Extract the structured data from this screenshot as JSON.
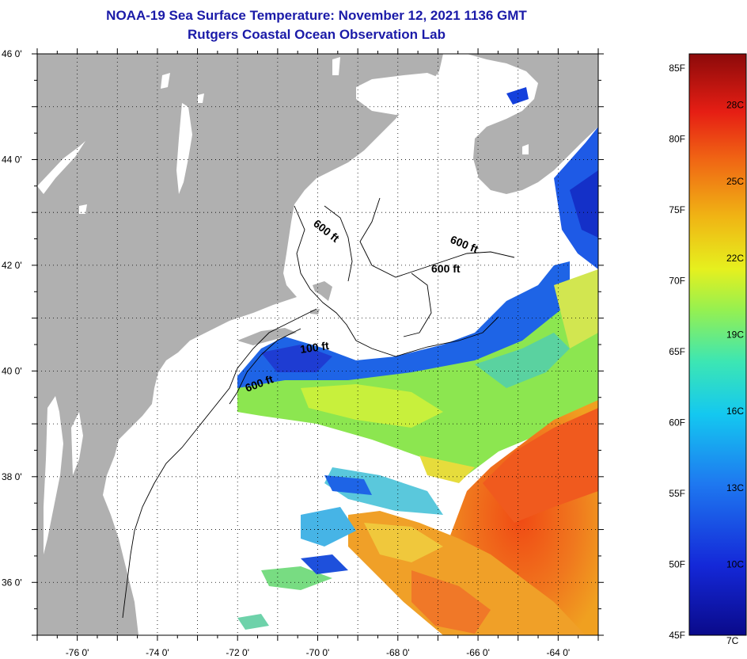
{
  "title": "NOAA-19 Sea Surface Temperature:  November 12, 2021 1136 GMT",
  "subtitle": "Rutgers Coastal Ocean Observation Lab",
  "map": {
    "lon_range": [
      -77,
      -63
    ],
    "lat_range": [
      35,
      46
    ],
    "lat_ticks": [
      {
        "value": 46,
        "label": "46 0'"
      },
      {
        "value": 44,
        "label": "44 0'"
      },
      {
        "value": 42,
        "label": "42 0'"
      },
      {
        "value": 40,
        "label": "40 0'"
      },
      {
        "value": 38,
        "label": "38 0'"
      },
      {
        "value": 36,
        "label": "36 0'"
      }
    ],
    "lon_ticks": [
      {
        "value": -76,
        "label": "-76 0'"
      },
      {
        "value": -74,
        "label": "-74 0'"
      },
      {
        "value": -72,
        "label": "-72 0'"
      },
      {
        "value": -70,
        "label": "-70 0'"
      },
      {
        "value": -68,
        "label": "-68 0'"
      },
      {
        "value": -66,
        "label": "-66 0'"
      },
      {
        "value": -64,
        "label": "-64 0'"
      }
    ],
    "contour_labels": [
      {
        "text": "600 ft"
      },
      {
        "text": "600 ft"
      },
      {
        "text": "600 ft"
      },
      {
        "text": "100 ft"
      },
      {
        "text": "600 ft"
      }
    ],
    "colors": {
      "land": "#b0b0b0",
      "no_data": "#ffffff"
    }
  },
  "colorbar": {
    "min_f": 45,
    "max_f": 86,
    "f_labels": [
      {
        "value": 85,
        "label": "85F"
      },
      {
        "value": 80,
        "label": "80F"
      },
      {
        "value": 75,
        "label": "75F"
      },
      {
        "value": 70,
        "label": "70F"
      },
      {
        "value": 65,
        "label": "65F"
      },
      {
        "value": 60,
        "label": "60F"
      },
      {
        "value": 55,
        "label": "55F"
      },
      {
        "value": 50,
        "label": "50F"
      },
      {
        "value": 45,
        "label": "45F"
      }
    ],
    "c_labels": [
      {
        "value": 28,
        "label": "28C"
      },
      {
        "value": 25,
        "label": "25C"
      },
      {
        "value": 22,
        "label": "22C"
      },
      {
        "value": 19,
        "label": "19C"
      },
      {
        "value": 16,
        "label": "16C"
      },
      {
        "value": 13,
        "label": "13C"
      },
      {
        "value": 10,
        "label": "10C"
      },
      {
        "value": 7,
        "label": "7C"
      }
    ]
  }
}
